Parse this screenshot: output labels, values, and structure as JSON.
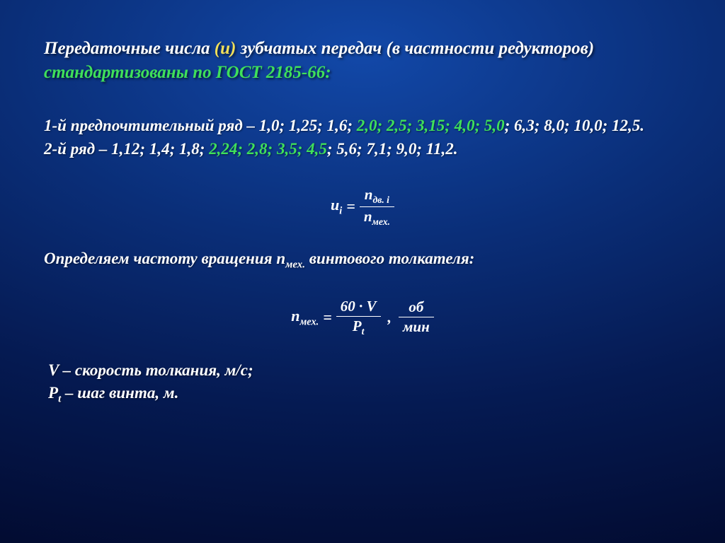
{
  "colors": {
    "text": "#ffffff",
    "accent_yellow": "#f2e05a",
    "accent_green": "#3fe05a",
    "bg_inner": "#1248a8",
    "bg_outer": "#020a2e"
  },
  "typography": {
    "family": "Times New Roman",
    "style": "italic",
    "weight": "bold",
    "heading_size_pt": 25,
    "body_size_pt": 23,
    "formula_size_pt": 22
  },
  "heading": {
    "part1": "Передаточные числа ",
    "u_symbol": "(u)",
    "part2": " зубчатых передач (в частности редукторов) ",
    "gost_line": "стандартизованы по ГОСТ 2185-66:"
  },
  "series": {
    "row1": {
      "prefix": "1-й предпочтительный ряд – 1,0; 1,25; 1,6; ",
      "highlight": "2,0; 2,5; 3,15; 4,0; 5,0",
      "suffix": "; 6,3; 8,0; 10,0; 12,5."
    },
    "row2": {
      "prefix": "2-й ряд – 1,12; 1,4; 1,8; ",
      "highlight": "2,24; 2,8; 3,5; 4,5",
      "suffix": "; 5,6; 7,1; 9,0; 11,2."
    }
  },
  "formula1": {
    "lhs_base": "u",
    "lhs_sub": "i",
    "eq": " = ",
    "num_base": "n",
    "num_sub": "дв. i",
    "den_base": "n",
    "den_sub": "мех."
  },
  "sentence2": {
    "part1": "Определяем частоту вращения n",
    "sub": "мех.",
    "part2": "  винтового толкателя:"
  },
  "formula2": {
    "lhs_base": "n",
    "lhs_sub": "мех.",
    "eq": " = ",
    "num1": "60 · V",
    "den1_base": "P",
    "den1_sub": "t",
    "comma": ", ",
    "num2": "об",
    "den2": "мин"
  },
  "definitions": {
    "line1": "V – скорость толкания, м/с;",
    "line2_prefix": "P",
    "line2_sub": "t",
    "line2_suffix": " – шаг винта, м."
  }
}
